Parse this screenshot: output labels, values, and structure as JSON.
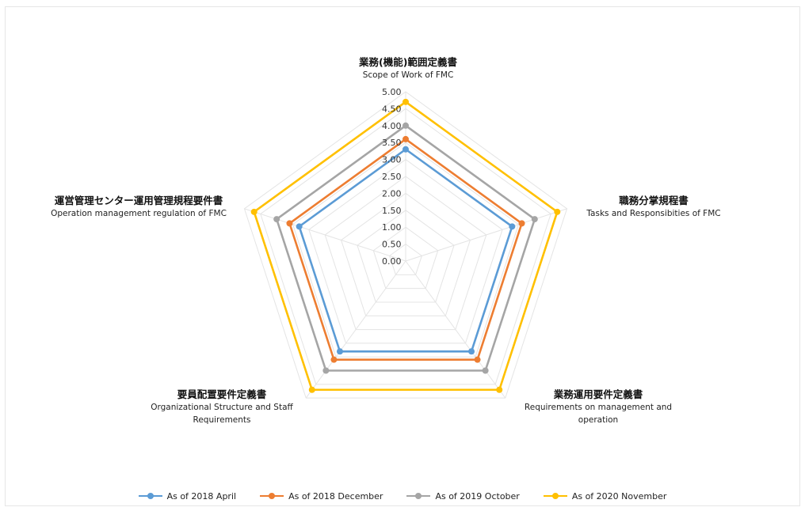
{
  "chart_data": {
    "type": "radar",
    "axes": [
      {
        "jp": "業務(機能)範囲定義書",
        "en": "Scope of Work of FMC"
      },
      {
        "jp": "職務分掌規程書",
        "en": "Tasks and Responsibities of FMC"
      },
      {
        "jp": "業務運用要件定義書",
        "en": "Requirements on  management and operation"
      },
      {
        "jp": "要員配置要件定義書",
        "en": "Organizational Structure and Staff Requirements"
      },
      {
        "jp": "運営管理センター運用管理規程要件書",
        "en": "Operation management regulation of FMC"
      }
    ],
    "ticks": [
      "0.00",
      "0.50",
      "1.00",
      "1.50",
      "2.00",
      "2.50",
      "3.00",
      "3.50",
      "4.00",
      "4.50",
      "5.00"
    ],
    "rlim": [
      0,
      5
    ],
    "series": [
      {
        "name": "As of 2018 April",
        "color": "#5b9bd5",
        "values": [
          3.3,
          3.3,
          3.3,
          3.3,
          3.3
        ]
      },
      {
        "name": "As of 2018 December",
        "color": "#ed7d31",
        "values": [
          3.6,
          3.6,
          3.6,
          3.6,
          3.6
        ]
      },
      {
        "name": "As of 2019 October",
        "color": "#a5a5a5",
        "values": [
          4.0,
          4.0,
          4.0,
          4.0,
          4.0
        ]
      },
      {
        "name": "As of 2020 November",
        "color": "#ffc000",
        "values": [
          4.7,
          4.7,
          4.7,
          4.7,
          4.7
        ]
      }
    ],
    "legend_position": "bottom",
    "grid": true
  }
}
